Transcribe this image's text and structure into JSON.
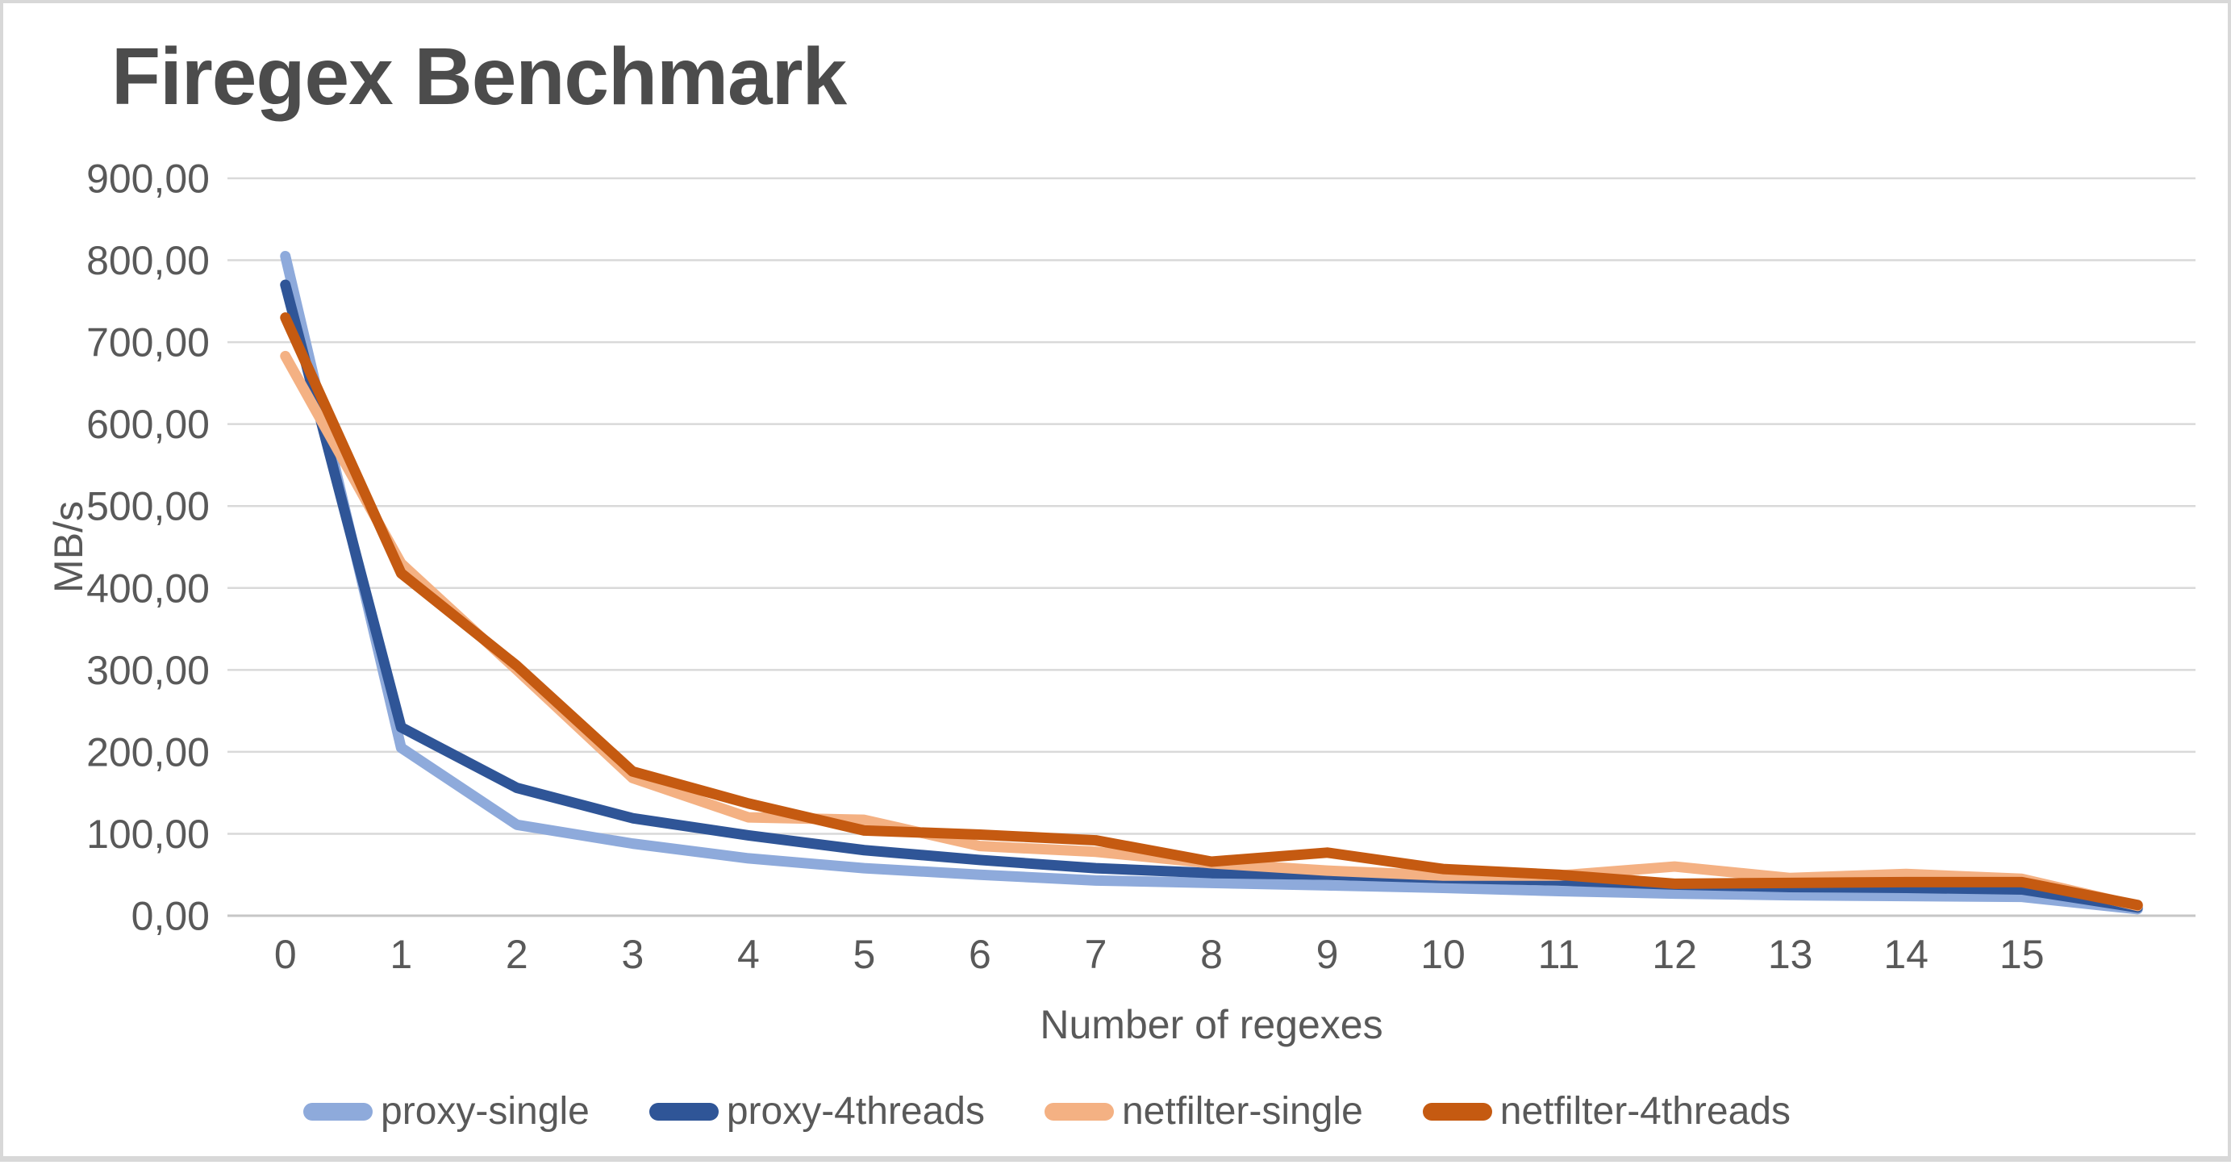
{
  "page": {
    "background": "#ffffff",
    "border_color": "#d8d8d8"
  },
  "chart_title": "Firegex Benchmark",
  "chart_data": {
    "type": "line",
    "title": "Firegex Benchmark",
    "xlabel": "Number of regexes",
    "ylabel": "MB/s",
    "ylim": [
      0,
      900
    ],
    "grid": true,
    "legend_position": "bottom",
    "y_tick_labels": [
      "0,00",
      "100,00",
      "200,00",
      "300,00",
      "400,00",
      "500,00",
      "600,00",
      "700,00",
      "800,00",
      "900,00"
    ],
    "y_tick_values": [
      0,
      100,
      200,
      300,
      400,
      500,
      600,
      700,
      800,
      900
    ],
    "x_tick_labels": [
      "0",
      "1",
      "2",
      "3",
      "4",
      "5",
      "6",
      "7",
      "8",
      "9",
      "10",
      "11",
      "12",
      "13",
      "14",
      "15",
      ""
    ],
    "x": [
      0,
      1,
      2,
      3,
      4,
      5,
      6,
      7,
      8,
      9,
      10,
      11,
      12,
      13,
      14,
      15,
      16
    ],
    "series": [
      {
        "name": "proxy-single",
        "color": "#8EAADB",
        "values": [
          805,
          205,
          111,
          88,
          70,
          58,
          50,
          43,
          40,
          37,
          34,
          30,
          27,
          25,
          24,
          23,
          8
        ]
      },
      {
        "name": "proxy-4threads",
        "color": "#2F5597",
        "values": [
          770,
          230,
          156,
          119,
          98,
          80,
          68,
          58,
          52,
          50,
          46,
          43,
          38,
          35,
          34,
          32,
          10
        ]
      },
      {
        "name": "netfilter-single",
        "color": "#F4B183",
        "values": [
          683,
          430,
          300,
          168,
          120,
          117,
          85,
          78,
          64,
          55,
          49,
          49,
          60,
          46,
          51,
          45,
          12
        ]
      },
      {
        "name": "netfilter-4threads",
        "color": "#C55A11",
        "values": [
          730,
          418,
          305,
          176,
          137,
          104,
          99,
          92,
          66,
          77,
          57,
          50,
          39,
          40,
          41,
          41,
          13
        ]
      }
    ],
    "style": {
      "grid_color": "#d9d9d9",
      "axis_line_color": "#c6c6c6",
      "tick_label_color": "#595959",
      "axis_title_color": "#595959",
      "line_width": 13
    }
  }
}
